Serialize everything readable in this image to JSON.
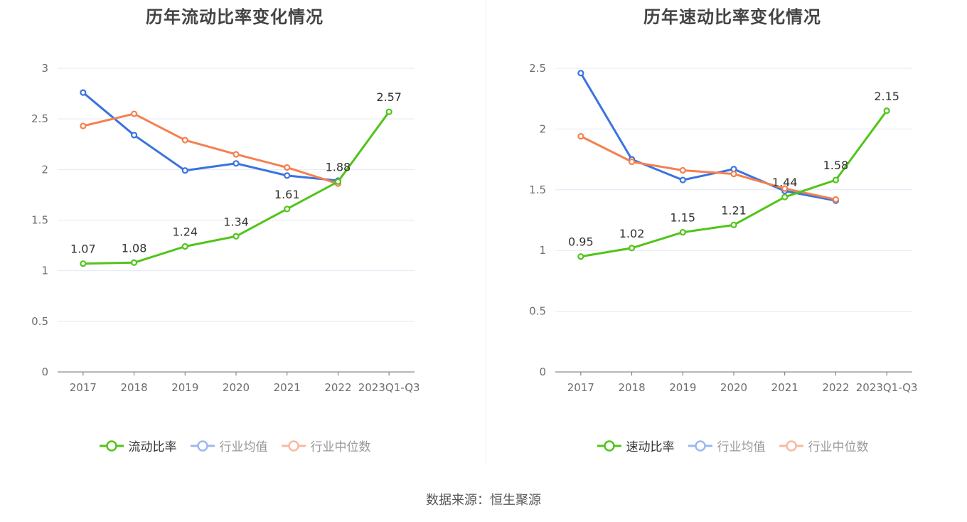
{
  "footer": {
    "source": "数据来源：恒生聚源"
  },
  "colors": {
    "main": "#52c41a",
    "average": "#3a73e0",
    "median": "#f5804f",
    "legend_dim_average": "#9bb9ef",
    "legend_dim_median": "#f9b9a0"
  },
  "chart_data": [
    {
      "type": "line",
      "title": "历年流动比率变化情况",
      "categories": [
        "2017",
        "2018",
        "2019",
        "2020",
        "2021",
        "2022",
        "2023Q1-Q3"
      ],
      "ylim": [
        0,
        3
      ],
      "yticks": [
        0,
        0.5,
        1,
        1.5,
        2,
        2.5,
        3
      ],
      "grid": true,
      "legend_position": "bottom",
      "series": [
        {
          "name": "流动比率",
          "key": "main",
          "values": [
            1.07,
            1.08,
            1.24,
            1.34,
            1.61,
            1.88,
            2.57
          ],
          "labels": true
        },
        {
          "name": "行业均值",
          "key": "average",
          "values": [
            2.76,
            2.34,
            1.99,
            2.06,
            1.94,
            1.89,
            null
          ],
          "labels": false
        },
        {
          "name": "行业中位数",
          "key": "median",
          "values": [
            2.43,
            2.55,
            2.29,
            2.15,
            2.02,
            1.86,
            null
          ],
          "labels": false
        }
      ]
    },
    {
      "type": "line",
      "title": "历年速动比率变化情况",
      "categories": [
        "2017",
        "2018",
        "2019",
        "2020",
        "2021",
        "2022",
        "2023Q1-Q3"
      ],
      "ylim": [
        0,
        2.5
      ],
      "yticks": [
        0,
        0.5,
        1,
        1.5,
        2,
        2.5
      ],
      "grid": true,
      "legend_position": "bottom",
      "series": [
        {
          "name": "速动比率",
          "key": "main",
          "values": [
            0.95,
            1.02,
            1.15,
            1.21,
            1.44,
            1.58,
            2.15
          ],
          "labels": true
        },
        {
          "name": "行业均值",
          "key": "average",
          "values": [
            2.46,
            1.75,
            1.58,
            1.67,
            1.49,
            1.41,
            null
          ],
          "labels": false
        },
        {
          "name": "行业中位数",
          "key": "median",
          "values": [
            1.94,
            1.73,
            1.66,
            1.63,
            1.51,
            1.42,
            null
          ],
          "labels": false
        }
      ]
    }
  ]
}
